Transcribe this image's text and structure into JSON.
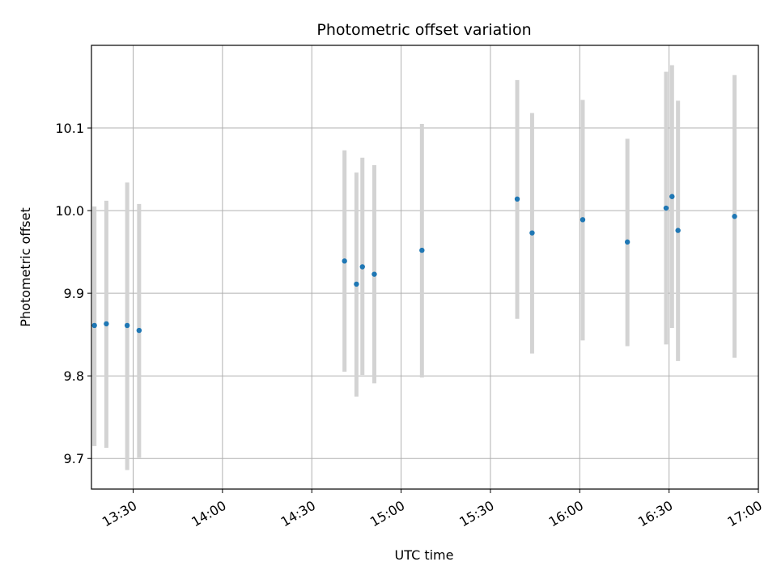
{
  "chart_data": {
    "type": "scatter",
    "title": "Photometric offset variation",
    "xlabel": "UTC time",
    "ylabel": "Photometric offset",
    "xlim": [
      "13:16",
      "17:00"
    ],
    "ylim": [
      9.663,
      10.2
    ],
    "x_ticks": [
      "13:30",
      "14:00",
      "14:30",
      "15:00",
      "15:30",
      "16:00",
      "16:30",
      "17:00"
    ],
    "y_ticks": [
      "9.7",
      "9.8",
      "9.9",
      "10.0",
      "10.1"
    ],
    "grid": true,
    "colors": {
      "points": "#1f77b4",
      "error_bars": "#d3d3d3",
      "grid": "#b0b0b0"
    },
    "points": [
      {
        "time": "13:17",
        "y": 9.861,
        "err_low": 9.715,
        "err_high": 10.005
      },
      {
        "time": "13:21",
        "y": 9.863,
        "err_low": 9.713,
        "err_high": 10.012
      },
      {
        "time": "13:28",
        "y": 9.861,
        "err_low": 9.686,
        "err_high": 10.034
      },
      {
        "time": "13:32",
        "y": 9.855,
        "err_low": 9.701,
        "err_high": 10.008
      },
      {
        "time": "14:41",
        "y": 9.939,
        "err_low": 9.805,
        "err_high": 10.073
      },
      {
        "time": "14:45",
        "y": 9.911,
        "err_low": 9.775,
        "err_high": 10.046
      },
      {
        "time": "14:47",
        "y": 9.932,
        "err_low": 9.801,
        "err_high": 10.064
      },
      {
        "time": "14:51",
        "y": 9.923,
        "err_low": 9.791,
        "err_high": 10.055
      },
      {
        "time": "15:07",
        "y": 9.952,
        "err_low": 9.798,
        "err_high": 10.105
      },
      {
        "time": "15:39",
        "y": 10.014,
        "err_low": 9.869,
        "err_high": 10.158
      },
      {
        "time": "15:44",
        "y": 9.973,
        "err_low": 9.827,
        "err_high": 10.118
      },
      {
        "time": "16:01",
        "y": 9.989,
        "err_low": 9.843,
        "err_high": 10.134
      },
      {
        "time": "16:16",
        "y": 9.962,
        "err_low": 9.836,
        "err_high": 10.087
      },
      {
        "time": "16:29",
        "y": 10.003,
        "err_low": 9.838,
        "err_high": 10.168
      },
      {
        "time": "16:31",
        "y": 10.017,
        "err_low": 9.858,
        "err_high": 10.176
      },
      {
        "time": "16:33",
        "y": 9.976,
        "err_low": 9.818,
        "err_high": 10.133
      },
      {
        "time": "16:52",
        "y": 9.993,
        "err_low": 9.822,
        "err_high": 10.164
      }
    ]
  }
}
